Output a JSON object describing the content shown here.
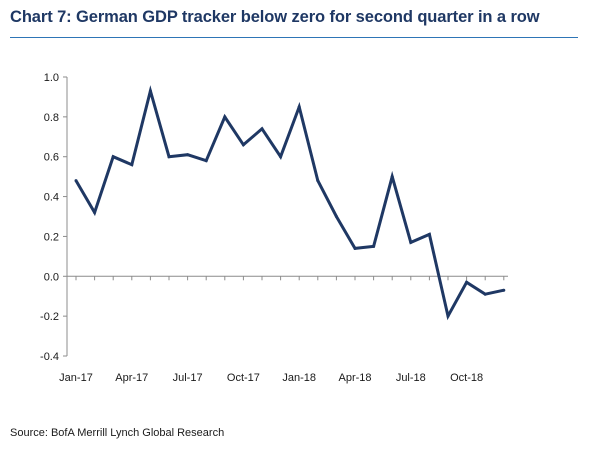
{
  "chart_data": {
    "type": "line",
    "title": "Chart 7: German GDP tracker below zero for second quarter in a row",
    "xlabel": "",
    "ylabel": "",
    "ylim": [
      -0.4,
      1.0
    ],
    "yticks": [
      -0.4,
      -0.2,
      0.0,
      0.2,
      0.4,
      0.6,
      0.8,
      1.0
    ],
    "ytick_labels": [
      "-0.4",
      "-0.2",
      "0.0",
      "0.2",
      "0.4",
      "0.6",
      "0.8",
      "1.0"
    ],
    "x_tick_labels": [
      {
        "index": 0,
        "label": "Jan-17"
      },
      {
        "index": 3,
        "label": "Apr-17"
      },
      {
        "index": 6,
        "label": "Jul-17"
      },
      {
        "index": 9,
        "label": "Oct-17"
      },
      {
        "index": 12,
        "label": "Jan-18"
      },
      {
        "index": 15,
        "label": "Apr-18"
      },
      {
        "index": 18,
        "label": "Jul-18"
      },
      {
        "index": 21,
        "label": "Oct-18"
      }
    ],
    "grid": false,
    "series": [
      {
        "name": "German GDP tracker",
        "color": "#1f3864",
        "values": [
          0.48,
          0.32,
          0.6,
          0.56,
          0.93,
          0.6,
          0.61,
          0.58,
          0.8,
          0.66,
          0.74,
          0.6,
          0.85,
          0.48,
          0.3,
          0.14,
          0.15,
          0.5,
          0.17,
          0.21,
          -0.2,
          -0.03,
          -0.09,
          -0.07
        ]
      }
    ]
  },
  "source": "Source: BofA Merrill Lynch Global Research",
  "colors": {
    "line": "#1f3864",
    "title": "#1f3864",
    "title_rule": "#2e75b6",
    "axis": "#8c8c8c"
  }
}
